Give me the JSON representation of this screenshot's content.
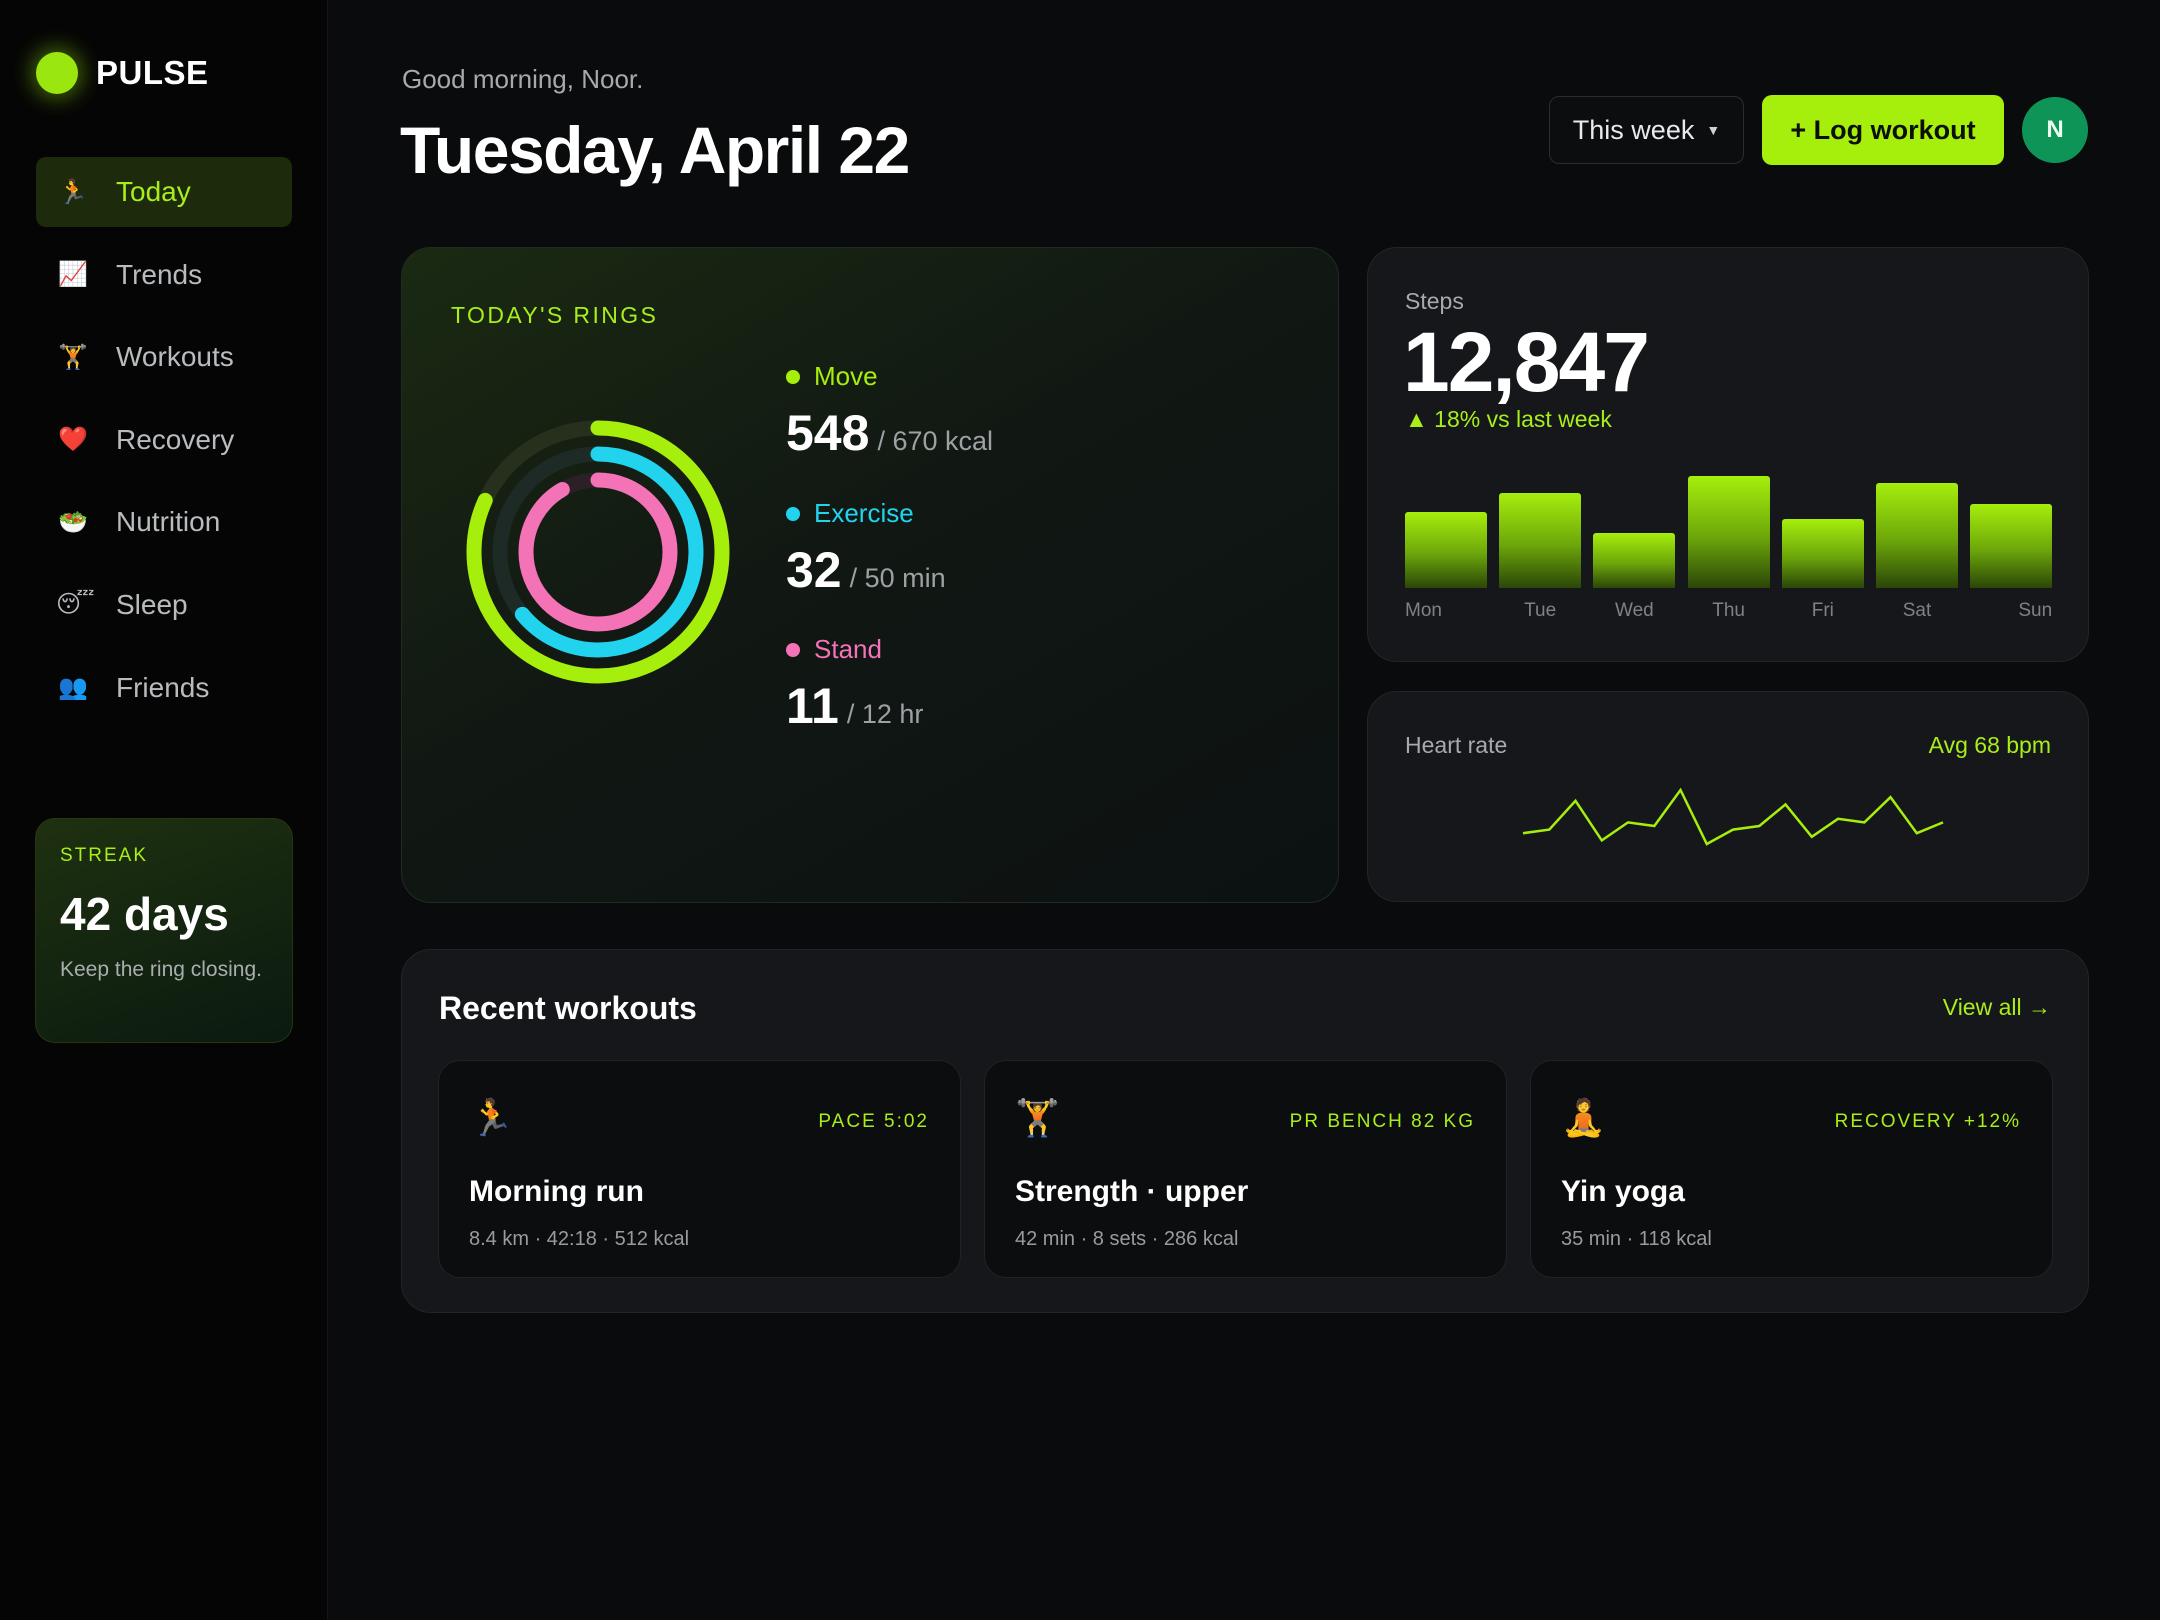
{
  "app": {
    "name": "PULSE",
    "brand_color": "#9ae60f"
  },
  "sidebar": {
    "items": [
      {
        "label": "Today",
        "icon": "🏃",
        "icon_name": "runner-icon",
        "active": true
      },
      {
        "label": "Trends",
        "icon": "📈",
        "icon_name": "chart-up-icon"
      },
      {
        "label": "Workouts",
        "icon": "🏋️",
        "icon_name": "weightlifter-icon"
      },
      {
        "label": "Recovery",
        "icon": "❤️",
        "icon_name": "heart-icon"
      },
      {
        "label": "Nutrition",
        "icon": "🥗",
        "icon_name": "salad-icon"
      },
      {
        "label": "Sleep",
        "icon": "😴",
        "icon_name": "sleeping-face-icon"
      },
      {
        "label": "Friends",
        "icon": "👥",
        "icon_name": "people-icon"
      }
    ],
    "streak": {
      "label": "STREAK",
      "value": "42 days",
      "note": "Keep the ring closing."
    }
  },
  "header": {
    "greeting": "Good morning, Noor.",
    "date": "Tuesday, April 22",
    "range": "This week",
    "log_button": "+ Log workout",
    "avatar_initial": "N"
  },
  "rings": {
    "label": "TODAY'S RINGS",
    "items": [
      {
        "name": "Move",
        "value": "548",
        "goal": "/ 670 kcal",
        "progress": 0.818,
        "color": "#a6ee0c",
        "track": "#26301c"
      },
      {
        "name": "Exercise",
        "value": "32",
        "goal": "/ 50 min",
        "progress": 0.64,
        "color": "#22d3ee",
        "track": "#1d2a26"
      },
      {
        "name": "Stand",
        "value": "11",
        "goal": "/ 12 hr",
        "progress": 0.917,
        "color": "#f472b6",
        "track": "#2a2026"
      }
    ]
  },
  "steps": {
    "label": "Steps",
    "value": "12,847",
    "change": "▲ 18% vs last week",
    "chart_data": {
      "type": "bar",
      "categories": [
        "Mon",
        "Tue",
        "Wed",
        "Thu",
        "Fri",
        "Sat",
        "Sun"
      ],
      "values": [
        0.68,
        0.85,
        0.49,
        1.0,
        0.62,
        0.94,
        0.75
      ]
    }
  },
  "heart_rate": {
    "label": "Heart rate",
    "avg": "Avg 68 bpm",
    "chart_data": {
      "type": "line",
      "values": [
        62,
        63,
        71,
        60,
        65,
        64,
        74,
        59,
        63,
        64,
        70,
        61,
        66,
        65,
        72,
        62,
        65
      ]
    }
  },
  "recent": {
    "title": "Recent workouts",
    "view_all": "View all →",
    "workouts": [
      {
        "icon": "🏃",
        "icon_name": "runner-icon",
        "tag": "PACE 5:02",
        "name": "Morning run",
        "meta": "8.4 km · 42:18 · 512 kcal"
      },
      {
        "icon": "🏋️",
        "icon_name": "weightlifter-icon",
        "tag": "PR BENCH 82 KG",
        "name": "Strength · upper",
        "meta": "42 min · 8 sets · 286 kcal"
      },
      {
        "icon": "🧘",
        "icon_name": "yoga-icon",
        "tag": "RECOVERY +12%",
        "name": "Yin yoga",
        "meta": "35 min · 118 kcal"
      }
    ]
  }
}
